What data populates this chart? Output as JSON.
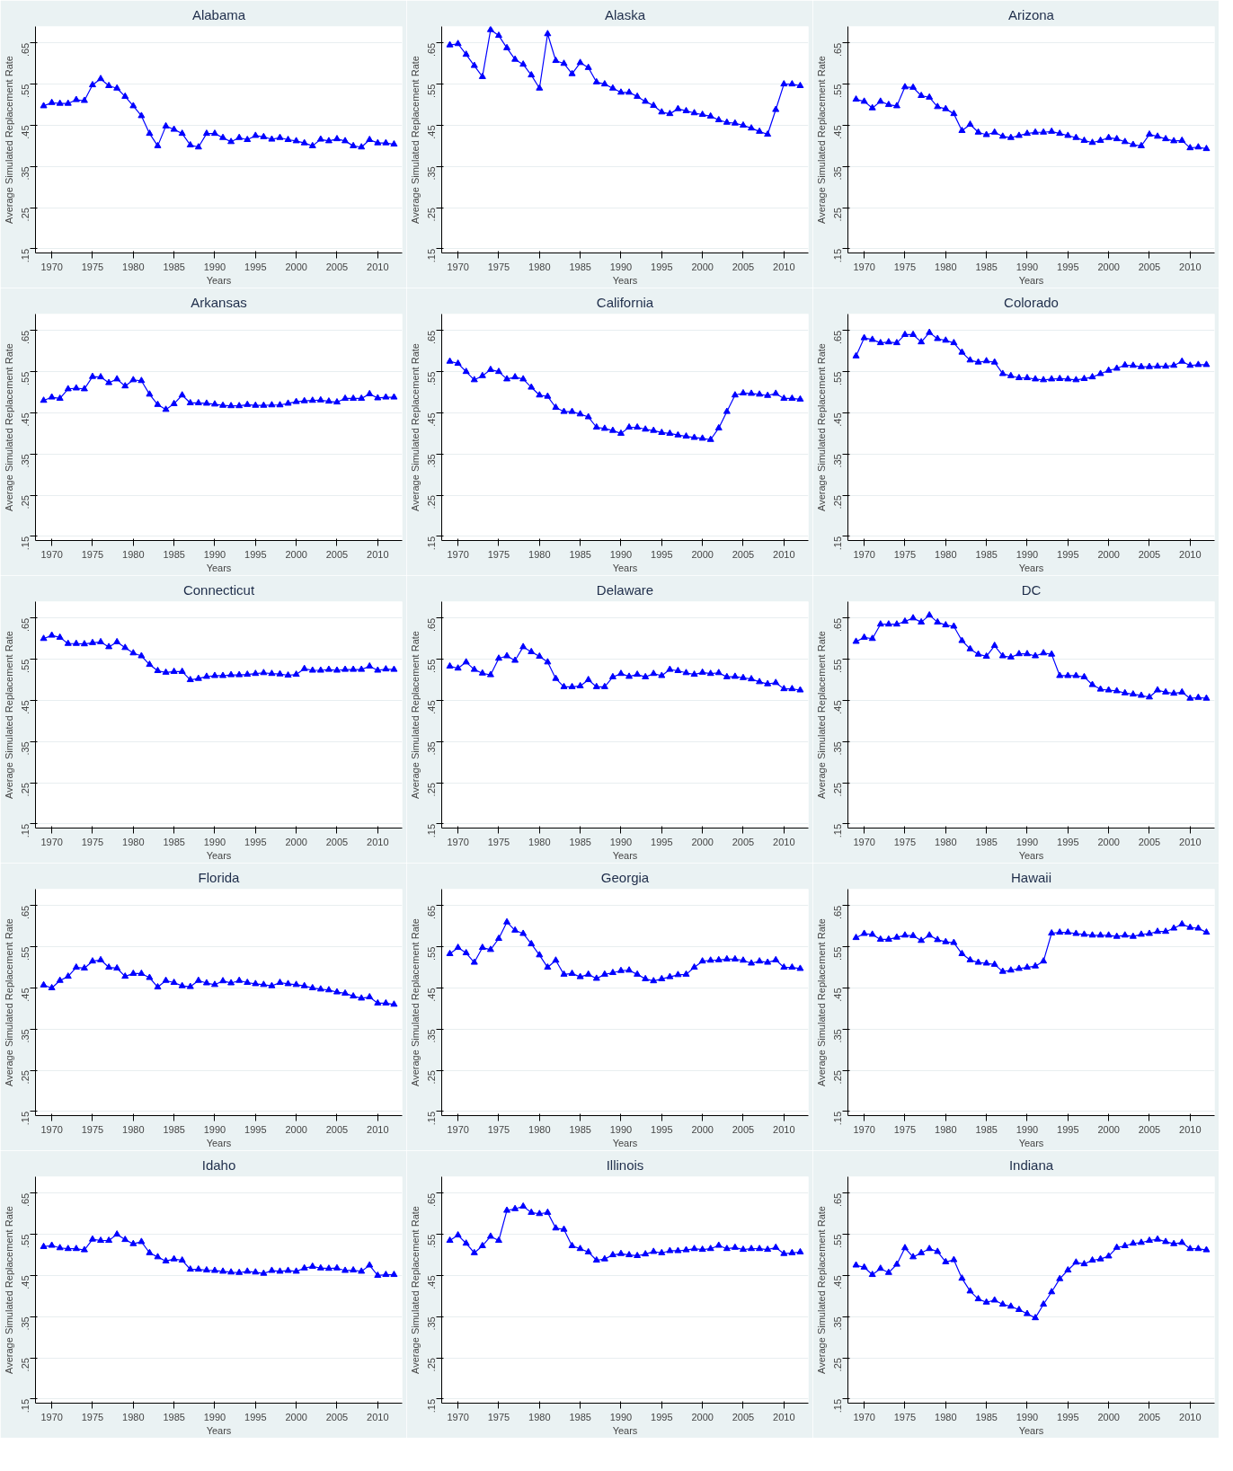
{
  "chart_data": [
    {
      "type": "line",
      "title": "Alabama",
      "xlabel": "Years",
      "ylabel": "Average Simulated Replacement Rate",
      "x": [
        1969,
        1970,
        1971,
        1972,
        1973,
        1974,
        1975,
        1976,
        1977,
        1978,
        1979,
        1980,
        1981,
        1982,
        1983,
        1984,
        1985,
        1986,
        1987,
        1988,
        1989,
        1990,
        1991,
        1992,
        1993,
        1994,
        1995,
        1996,
        1997,
        1998,
        1999,
        2000,
        2001,
        2002,
        2003,
        2004,
        2005,
        2006,
        2007,
        2008,
        2009,
        2010,
        2011,
        2012
      ],
      "series": [
        {
          "color": "#0000ff",
          "values": [
            0.497,
            0.505,
            0.503,
            0.503,
            0.512,
            0.51,
            0.548,
            0.563,
            0.546,
            0.54,
            0.52,
            0.497,
            0.473,
            0.43,
            0.4,
            0.448,
            0.44,
            0.43,
            0.402,
            0.397,
            0.43,
            0.43,
            0.42,
            0.41,
            0.42,
            0.415,
            0.425,
            0.422,
            0.416,
            0.42,
            0.415,
            0.412,
            0.407,
            0.4,
            0.416,
            0.412,
            0.417,
            0.412,
            0.4,
            0.397,
            0.415,
            0.407,
            0.407,
            0.404
          ]
        }
      ],
      "xlim": [
        1968,
        2013
      ],
      "xticks": [
        1970,
        1975,
        1980,
        1985,
        1990,
        1995,
        2000,
        2005,
        2010
      ],
      "ylim": [
        0.14,
        0.69
      ],
      "yticks": [
        {
          "value": 0.15,
          "label": ".15"
        },
        {
          "value": 0.25,
          "label": ".25"
        },
        {
          "value": 0.35,
          "label": ".35"
        },
        {
          "value": 0.45,
          "label": ".45"
        },
        {
          "value": 0.55,
          "label": ".55"
        },
        {
          "value": 0.65,
          "label": ".65"
        }
      ],
      "grid": "y",
      "marker": "triangle"
    },
    {
      "type": "line",
      "title": "Alaska",
      "xlabel": "Years",
      "ylabel": "Average Simulated Replacement Rate",
      "x": [
        1969,
        1970,
        1971,
        1972,
        1973,
        1974,
        1975,
        1976,
        1977,
        1978,
        1979,
        1980,
        1981,
        1982,
        1983,
        1984,
        1985,
        1986,
        1987,
        1988,
        1989,
        1990,
        1991,
        1992,
        1993,
        1994,
        1995,
        1996,
        1997,
        1998,
        1999,
        2000,
        2001,
        2002,
        2003,
        2004,
        2005,
        2006,
        2007,
        2008,
        2009,
        2010,
        2011,
        2012
      ],
      "series": [
        {
          "color": "#0000ff",
          "values": [
            0.645,
            0.648,
            0.622,
            0.595,
            0.568,
            0.682,
            0.668,
            0.638,
            0.61,
            0.598,
            0.572,
            0.54,
            0.672,
            0.607,
            0.6,
            0.575,
            0.602,
            0.59,
            0.555,
            0.55,
            0.54,
            0.53,
            0.53,
            0.52,
            0.508,
            0.498,
            0.482,
            0.478,
            0.49,
            0.485,
            0.48,
            0.476,
            0.472,
            0.463,
            0.457,
            0.455,
            0.45,
            0.443,
            0.435,
            0.428,
            0.488,
            0.55,
            0.55,
            0.546
          ]
        }
      ],
      "xlim": [
        1968,
        2013
      ],
      "xticks": [
        1970,
        1975,
        1980,
        1985,
        1990,
        1995,
        2000,
        2005,
        2010
      ],
      "ylim": [
        0.14,
        0.69
      ],
      "yticks": [
        {
          "value": 0.15,
          "label": ".15"
        },
        {
          "value": 0.25,
          "label": ".25"
        },
        {
          "value": 0.35,
          "label": ".35"
        },
        {
          "value": 0.45,
          "label": ".45"
        },
        {
          "value": 0.55,
          "label": ".55"
        },
        {
          "value": 0.65,
          "label": ".65"
        }
      ],
      "grid": "y",
      "marker": "triangle"
    },
    {
      "type": "line",
      "title": "Arizona",
      "xlabel": "Years",
      "ylabel": "Average Simulated Replacement Rate",
      "x": [
        1969,
        1970,
        1971,
        1972,
        1973,
        1974,
        1975,
        1976,
        1977,
        1978,
        1979,
        1980,
        1981,
        1982,
        1983,
        1984,
        1985,
        1986,
        1987,
        1988,
        1989,
        1990,
        1991,
        1992,
        1993,
        1994,
        1995,
        1996,
        1997,
        1998,
        1999,
        2000,
        2001,
        2002,
        2003,
        2004,
        2005,
        2006,
        2007,
        2008,
        2009,
        2010,
        2011,
        2012
      ],
      "series": [
        {
          "color": "#0000ff",
          "values": [
            0.513,
            0.508,
            0.492,
            0.508,
            0.5,
            0.497,
            0.543,
            0.542,
            0.522,
            0.518,
            0.495,
            0.49,
            0.478,
            0.437,
            0.452,
            0.433,
            0.427,
            0.433,
            0.423,
            0.42,
            0.425,
            0.43,
            0.433,
            0.433,
            0.435,
            0.43,
            0.425,
            0.42,
            0.413,
            0.408,
            0.413,
            0.42,
            0.417,
            0.41,
            0.403,
            0.4,
            0.428,
            0.423,
            0.417,
            0.412,
            0.413,
            0.395,
            0.397,
            0.393
          ]
        }
      ],
      "xlim": [
        1968,
        2013
      ],
      "xticks": [
        1970,
        1975,
        1980,
        1985,
        1990,
        1995,
        2000,
        2005,
        2010
      ],
      "ylim": [
        0.14,
        0.69
      ],
      "yticks": [
        {
          "value": 0.15,
          "label": ".15"
        },
        {
          "value": 0.25,
          "label": ".25"
        },
        {
          "value": 0.35,
          "label": ".35"
        },
        {
          "value": 0.45,
          "label": ".45"
        },
        {
          "value": 0.55,
          "label": ".55"
        },
        {
          "value": 0.65,
          "label": ".65"
        }
      ],
      "grid": "y",
      "marker": "triangle"
    },
    {
      "type": "line",
      "title": "Arkansas",
      "xlabel": "Years",
      "ylabel": "Average Simulated Replacement Rate",
      "x": [
        1969,
        1970,
        1971,
        1972,
        1973,
        1974,
        1975,
        1976,
        1977,
        1978,
        1979,
        1980,
        1981,
        1982,
        1983,
        1984,
        1985,
        1986,
        1987,
        1988,
        1989,
        1990,
        1991,
        1992,
        1993,
        1994,
        1995,
        1996,
        1997,
        1998,
        1999,
        2000,
        2001,
        2002,
        2003,
        2004,
        2005,
        2006,
        2007,
        2008,
        2009,
        2010,
        2011,
        2012
      ],
      "series": [
        {
          "color": "#0000ff",
          "values": [
            0.48,
            0.488,
            0.485,
            0.508,
            0.51,
            0.508,
            0.538,
            0.537,
            0.523,
            0.532,
            0.515,
            0.53,
            0.528,
            0.495,
            0.47,
            0.458,
            0.472,
            0.493,
            0.474,
            0.474,
            0.473,
            0.471,
            0.468,
            0.467,
            0.467,
            0.47,
            0.468,
            0.468,
            0.469,
            0.469,
            0.473,
            0.477,
            0.479,
            0.48,
            0.481,
            0.478,
            0.476,
            0.485,
            0.485,
            0.485,
            0.496,
            0.486,
            0.488,
            0.488
          ]
        }
      ],
      "xlim": [
        1968,
        2013
      ],
      "xticks": [
        1970,
        1975,
        1980,
        1985,
        1990,
        1995,
        2000,
        2005,
        2010
      ],
      "ylim": [
        0.14,
        0.69
      ],
      "yticks": [
        {
          "value": 0.15,
          "label": ".15"
        },
        {
          "value": 0.25,
          "label": ".25"
        },
        {
          "value": 0.35,
          "label": ".35"
        },
        {
          "value": 0.45,
          "label": ".45"
        },
        {
          "value": 0.55,
          "label": ".55"
        },
        {
          "value": 0.65,
          "label": ".65"
        }
      ],
      "grid": "y",
      "marker": "triangle"
    },
    {
      "type": "line",
      "title": "California",
      "xlabel": "Years",
      "ylabel": "Average Simulated Replacement Rate",
      "x": [
        1969,
        1970,
        1971,
        1972,
        1973,
        1974,
        1975,
        1976,
        1977,
        1978,
        1979,
        1980,
        1981,
        1982,
        1983,
        1984,
        1985,
        1986,
        1987,
        1988,
        1989,
        1990,
        1991,
        1992,
        1993,
        1994,
        1995,
        1996,
        1997,
        1998,
        1999,
        2000,
        2001,
        2002,
        2003,
        2004,
        2005,
        2006,
        2007,
        2008,
        2009,
        2010,
        2011,
        2012
      ],
      "series": [
        {
          "color": "#0000ff",
          "values": [
            0.575,
            0.57,
            0.55,
            0.53,
            0.54,
            0.555,
            0.55,
            0.532,
            0.537,
            0.532,
            0.512,
            0.493,
            0.49,
            0.463,
            0.453,
            0.453,
            0.447,
            0.44,
            0.415,
            0.412,
            0.407,
            0.4,
            0.415,
            0.415,
            0.41,
            0.407,
            0.402,
            0.4,
            0.396,
            0.393,
            0.39,
            0.388,
            0.385,
            0.413,
            0.453,
            0.493,
            0.498,
            0.497,
            0.495,
            0.492,
            0.497,
            0.485,
            0.485,
            0.483
          ]
        }
      ],
      "xlim": [
        1968,
        2013
      ],
      "xticks": [
        1970,
        1975,
        1980,
        1985,
        1990,
        1995,
        2000,
        2005,
        2010
      ],
      "ylim": [
        0.14,
        0.69
      ],
      "yticks": [
        {
          "value": 0.15,
          "label": ".15"
        },
        {
          "value": 0.25,
          "label": ".25"
        },
        {
          "value": 0.35,
          "label": ".35"
        },
        {
          "value": 0.45,
          "label": ".45"
        },
        {
          "value": 0.55,
          "label": ".55"
        },
        {
          "value": 0.65,
          "label": ".65"
        }
      ],
      "grid": "y",
      "marker": "triangle"
    },
    {
      "type": "line",
      "title": "Colorado",
      "xlabel": "Years",
      "ylabel": "Average Simulated Replacement Rate",
      "x": [
        1969,
        1970,
        1971,
        1972,
        1973,
        1974,
        1975,
        1976,
        1977,
        1978,
        1979,
        1980,
        1981,
        1982,
        1983,
        1984,
        1985,
        1986,
        1987,
        1988,
        1989,
        1990,
        1991,
        1992,
        1993,
        1994,
        1995,
        1996,
        1997,
        1998,
        1999,
        2000,
        2001,
        2002,
        2003,
        2004,
        2005,
        2006,
        2007,
        2008,
        2009,
        2010,
        2011,
        2012
      ],
      "series": [
        {
          "color": "#0000ff",
          "values": [
            0.588,
            0.632,
            0.628,
            0.62,
            0.622,
            0.62,
            0.64,
            0.64,
            0.622,
            0.645,
            0.63,
            0.626,
            0.62,
            0.597,
            0.578,
            0.573,
            0.576,
            0.573,
            0.545,
            0.54,
            0.535,
            0.535,
            0.532,
            0.53,
            0.532,
            0.533,
            0.532,
            0.53,
            0.533,
            0.537,
            0.545,
            0.553,
            0.558,
            0.566,
            0.565,
            0.562,
            0.562,
            0.563,
            0.563,
            0.565,
            0.575,
            0.565,
            0.567,
            0.567
          ]
        }
      ],
      "xlim": [
        1968,
        2013
      ],
      "xticks": [
        1970,
        1975,
        1980,
        1985,
        1990,
        1995,
        2000,
        2005,
        2010
      ],
      "ylim": [
        0.14,
        0.69
      ],
      "yticks": [
        {
          "value": 0.15,
          "label": ".15"
        },
        {
          "value": 0.25,
          "label": ".25"
        },
        {
          "value": 0.35,
          "label": ".35"
        },
        {
          "value": 0.45,
          "label": ".45"
        },
        {
          "value": 0.55,
          "label": ".55"
        },
        {
          "value": 0.65,
          "label": ".65"
        }
      ],
      "grid": "y",
      "marker": "triangle"
    },
    {
      "type": "line",
      "title": "Connecticut",
      "xlabel": "Years",
      "ylabel": "Average Simulated Replacement Rate",
      "x": [
        1969,
        1970,
        1971,
        1972,
        1973,
        1974,
        1975,
        1976,
        1977,
        1978,
        1979,
        1980,
        1981,
        1982,
        1983,
        1984,
        1985,
        1986,
        1987,
        1988,
        1989,
        1990,
        1991,
        1992,
        1993,
        1994,
        1995,
        1996,
        1997,
        1998,
        1999,
        2000,
        2001,
        2002,
        2003,
        2004,
        2005,
        2006,
        2007,
        2008,
        2009,
        2010,
        2011,
        2012
      ],
      "series": [
        {
          "color": "#0000ff",
          "values": [
            0.6,
            0.608,
            0.603,
            0.588,
            0.588,
            0.587,
            0.59,
            0.592,
            0.58,
            0.592,
            0.578,
            0.565,
            0.558,
            0.537,
            0.522,
            0.518,
            0.52,
            0.52,
            0.5,
            0.503,
            0.508,
            0.51,
            0.51,
            0.512,
            0.512,
            0.513,
            0.515,
            0.517,
            0.515,
            0.514,
            0.511,
            0.513,
            0.527,
            0.523,
            0.523,
            0.525,
            0.523,
            0.525,
            0.525,
            0.525,
            0.533,
            0.523,
            0.526,
            0.525
          ]
        }
      ],
      "xlim": [
        1968,
        2013
      ],
      "xticks": [
        1970,
        1975,
        1980,
        1985,
        1990,
        1995,
        2000,
        2005,
        2010
      ],
      "ylim": [
        0.14,
        0.69
      ],
      "yticks": [
        {
          "value": 0.15,
          "label": ".15"
        },
        {
          "value": 0.25,
          "label": ".25"
        },
        {
          "value": 0.35,
          "label": ".35"
        },
        {
          "value": 0.45,
          "label": ".45"
        },
        {
          "value": 0.55,
          "label": ".55"
        },
        {
          "value": 0.65,
          "label": ".65"
        }
      ],
      "grid": "y",
      "marker": "triangle"
    },
    {
      "type": "line",
      "title": "Delaware",
      "xlabel": "Years",
      "ylabel": "Average Simulated Replacement Rate",
      "x": [
        1969,
        1970,
        1971,
        1972,
        1973,
        1974,
        1975,
        1976,
        1977,
        1978,
        1979,
        1980,
        1981,
        1982,
        1983,
        1984,
        1985,
        1986,
        1987,
        1988,
        1989,
        1990,
        1991,
        1992,
        1993,
        1994,
        1995,
        1996,
        1997,
        1998,
        1999,
        2000,
        2001,
        2002,
        2003,
        2004,
        2005,
        2006,
        2007,
        2008,
        2009,
        2010,
        2011,
        2012
      ],
      "series": [
        {
          "color": "#0000ff",
          "values": [
            0.533,
            0.528,
            0.543,
            0.525,
            0.516,
            0.512,
            0.552,
            0.558,
            0.547,
            0.58,
            0.568,
            0.557,
            0.543,
            0.503,
            0.483,
            0.483,
            0.485,
            0.5,
            0.483,
            0.483,
            0.507,
            0.515,
            0.508,
            0.513,
            0.507,
            0.515,
            0.51,
            0.525,
            0.522,
            0.517,
            0.513,
            0.518,
            0.515,
            0.517,
            0.507,
            0.508,
            0.505,
            0.502,
            0.495,
            0.49,
            0.493,
            0.478,
            0.478,
            0.475
          ]
        }
      ],
      "xlim": [
        1968,
        2013
      ],
      "xticks": [
        1970,
        1975,
        1980,
        1985,
        1990,
        1995,
        2000,
        2005,
        2010
      ],
      "ylim": [
        0.14,
        0.69
      ],
      "yticks": [
        {
          "value": 0.15,
          "label": ".15"
        },
        {
          "value": 0.25,
          "label": ".25"
        },
        {
          "value": 0.35,
          "label": ".35"
        },
        {
          "value": 0.45,
          "label": ".45"
        },
        {
          "value": 0.55,
          "label": ".55"
        },
        {
          "value": 0.65,
          "label": ".65"
        }
      ],
      "grid": "y",
      "marker": "triangle"
    },
    {
      "type": "line",
      "title": "DC",
      "xlabel": "Years",
      "ylabel": "Average Simulated Replacement Rate",
      "x": [
        1969,
        1970,
        1971,
        1972,
        1973,
        1974,
        1975,
        1976,
        1977,
        1978,
        1979,
        1980,
        1981,
        1982,
        1983,
        1984,
        1985,
        1986,
        1987,
        1988,
        1989,
        1990,
        1991,
        1992,
        1993,
        1994,
        1995,
        1996,
        1997,
        1998,
        1999,
        2000,
        2001,
        2002,
        2003,
        2004,
        2005,
        2006,
        2007,
        2008,
        2009,
        2010,
        2011,
        2012
      ],
      "series": [
        {
          "color": "#0000ff",
          "values": [
            0.593,
            0.603,
            0.6,
            0.635,
            0.635,
            0.635,
            0.642,
            0.65,
            0.64,
            0.657,
            0.64,
            0.633,
            0.63,
            0.595,
            0.575,
            0.562,
            0.557,
            0.583,
            0.558,
            0.555,
            0.563,
            0.563,
            0.558,
            0.565,
            0.562,
            0.51,
            0.51,
            0.51,
            0.507,
            0.488,
            0.477,
            0.475,
            0.473,
            0.468,
            0.465,
            0.462,
            0.458,
            0.475,
            0.47,
            0.467,
            0.47,
            0.455,
            0.457,
            0.455
          ]
        }
      ],
      "xlim": [
        1968,
        2013
      ],
      "xticks": [
        1970,
        1975,
        1980,
        1985,
        1990,
        1995,
        2000,
        2005,
        2010
      ],
      "ylim": [
        0.14,
        0.69
      ],
      "yticks": [
        {
          "value": 0.15,
          "label": ".15"
        },
        {
          "value": 0.25,
          "label": ".25"
        },
        {
          "value": 0.35,
          "label": ".35"
        },
        {
          "value": 0.45,
          "label": ".45"
        },
        {
          "value": 0.55,
          "label": ".55"
        },
        {
          "value": 0.65,
          "label": ".65"
        }
      ],
      "grid": "y",
      "marker": "triangle"
    },
    {
      "type": "line",
      "title": "Florida",
      "xlabel": "Years",
      "ylabel": "Average Simulated Replacement Rate",
      "x": [
        1969,
        1970,
        1971,
        1972,
        1973,
        1974,
        1975,
        1976,
        1977,
        1978,
        1979,
        1980,
        1981,
        1982,
        1983,
        1984,
        1985,
        1986,
        1987,
        1988,
        1989,
        1990,
        1991,
        1992,
        1993,
        1994,
        1995,
        1996,
        1997,
        1998,
        1999,
        2000,
        2001,
        2002,
        2003,
        2004,
        2005,
        2006,
        2007,
        2008,
        2009,
        2010,
        2011,
        2012
      ],
      "series": [
        {
          "color": "#0000ff",
          "values": [
            0.457,
            0.45,
            0.468,
            0.478,
            0.5,
            0.498,
            0.515,
            0.518,
            0.5,
            0.498,
            0.478,
            0.485,
            0.485,
            0.475,
            0.452,
            0.468,
            0.463,
            0.455,
            0.453,
            0.468,
            0.462,
            0.458,
            0.467,
            0.462,
            0.468,
            0.463,
            0.46,
            0.458,
            0.455,
            0.463,
            0.46,
            0.458,
            0.455,
            0.45,
            0.447,
            0.445,
            0.44,
            0.437,
            0.43,
            0.425,
            0.428,
            0.413,
            0.413,
            0.41
          ]
        }
      ],
      "xlim": [
        1968,
        2013
      ],
      "xticks": [
        1970,
        1975,
        1980,
        1985,
        1990,
        1995,
        2000,
        2005,
        2010
      ],
      "ylim": [
        0.14,
        0.69
      ],
      "yticks": [
        {
          "value": 0.15,
          "label": ".15"
        },
        {
          "value": 0.25,
          "label": ".25"
        },
        {
          "value": 0.35,
          "label": ".35"
        },
        {
          "value": 0.45,
          "label": ".45"
        },
        {
          "value": 0.55,
          "label": ".55"
        },
        {
          "value": 0.65,
          "label": ".65"
        }
      ],
      "grid": "y",
      "marker": "triangle"
    },
    {
      "type": "line",
      "title": "Georgia",
      "xlabel": "Years",
      "ylabel": "Average Simulated Replacement Rate",
      "x": [
        1969,
        1970,
        1971,
        1972,
        1973,
        1974,
        1975,
        1976,
        1977,
        1978,
        1979,
        1980,
        1981,
        1982,
        1983,
        1984,
        1985,
        1986,
        1987,
        1988,
        1989,
        1990,
        1991,
        1992,
        1993,
        1994,
        1995,
        1996,
        1997,
        1998,
        1999,
        2000,
        2001,
        2002,
        2003,
        2004,
        2005,
        2006,
        2007,
        2008,
        2009,
        2010,
        2011,
        2012
      ],
      "series": [
        {
          "color": "#0000ff",
          "values": [
            0.533,
            0.548,
            0.535,
            0.512,
            0.548,
            0.543,
            0.57,
            0.61,
            0.59,
            0.582,
            0.557,
            0.53,
            0.5,
            0.517,
            0.483,
            0.485,
            0.477,
            0.483,
            0.473,
            0.483,
            0.487,
            0.492,
            0.493,
            0.483,
            0.472,
            0.467,
            0.472,
            0.477,
            0.482,
            0.483,
            0.5,
            0.515,
            0.517,
            0.518,
            0.52,
            0.52,
            0.517,
            0.51,
            0.515,
            0.512,
            0.518,
            0.5,
            0.5,
            0.497
          ]
        }
      ],
      "xlim": [
        1968,
        2013
      ],
      "xticks": [
        1970,
        1975,
        1980,
        1985,
        1990,
        1995,
        2000,
        2005,
        2010
      ],
      "ylim": [
        0.14,
        0.69
      ],
      "yticks": [
        {
          "value": 0.15,
          "label": ".15"
        },
        {
          "value": 0.25,
          "label": ".25"
        },
        {
          "value": 0.35,
          "label": ".35"
        },
        {
          "value": 0.45,
          "label": ".45"
        },
        {
          "value": 0.55,
          "label": ".55"
        },
        {
          "value": 0.65,
          "label": ".65"
        }
      ],
      "grid": "y",
      "marker": "triangle"
    },
    {
      "type": "line",
      "title": "Hawaii",
      "xlabel": "Years",
      "ylabel": "Average Simulated Replacement Rate",
      "x": [
        1969,
        1970,
        1971,
        1972,
        1973,
        1974,
        1975,
        1976,
        1977,
        1978,
        1979,
        1980,
        1981,
        1982,
        1983,
        1984,
        1985,
        1986,
        1987,
        1988,
        1989,
        1990,
        1991,
        1992,
        1993,
        1994,
        1995,
        1996,
        1997,
        1998,
        1999,
        2000,
        2001,
        2002,
        2003,
        2004,
        2005,
        2006,
        2007,
        2008,
        2009,
        2010,
        2011,
        2012
      ],
      "series": [
        {
          "color": "#0000ff",
          "values": [
            0.572,
            0.582,
            0.58,
            0.568,
            0.568,
            0.573,
            0.578,
            0.577,
            0.565,
            0.578,
            0.567,
            0.562,
            0.56,
            0.533,
            0.518,
            0.512,
            0.51,
            0.507,
            0.49,
            0.493,
            0.497,
            0.5,
            0.503,
            0.515,
            0.583,
            0.585,
            0.585,
            0.582,
            0.58,
            0.578,
            0.578,
            0.578,
            0.575,
            0.578,
            0.575,
            0.58,
            0.582,
            0.587,
            0.587,
            0.595,
            0.605,
            0.597,
            0.595,
            0.585
          ]
        }
      ],
      "xlim": [
        1968,
        2013
      ],
      "xticks": [
        1970,
        1975,
        1980,
        1985,
        1990,
        1995,
        2000,
        2005,
        2010
      ],
      "ylim": [
        0.14,
        0.69
      ],
      "yticks": [
        {
          "value": 0.15,
          "label": ".15"
        },
        {
          "value": 0.25,
          "label": ".25"
        },
        {
          "value": 0.35,
          "label": ".35"
        },
        {
          "value": 0.45,
          "label": ".45"
        },
        {
          "value": 0.55,
          "label": ".55"
        },
        {
          "value": 0.65,
          "label": ".65"
        }
      ],
      "grid": "y",
      "marker": "triangle"
    },
    {
      "type": "line",
      "title": "Idaho",
      "xlabel": "Years",
      "ylabel": "Average Simulated Replacement Rate",
      "x": [
        1969,
        1970,
        1971,
        1972,
        1973,
        1974,
        1975,
        1976,
        1977,
        1978,
        1979,
        1980,
        1981,
        1982,
        1983,
        1984,
        1985,
        1986,
        1987,
        1988,
        1989,
        1990,
        1991,
        1992,
        1993,
        1994,
        1995,
        1996,
        1997,
        1998,
        1999,
        2000,
        2001,
        2002,
        2003,
        2004,
        2005,
        2006,
        2007,
        2008,
        2009,
        2010,
        2011,
        2012
      ],
      "series": [
        {
          "color": "#0000ff",
          "values": [
            0.52,
            0.523,
            0.517,
            0.515,
            0.515,
            0.512,
            0.538,
            0.535,
            0.535,
            0.55,
            0.537,
            0.527,
            0.532,
            0.505,
            0.495,
            0.485,
            0.49,
            0.487,
            0.465,
            0.465,
            0.463,
            0.462,
            0.46,
            0.458,
            0.457,
            0.46,
            0.458,
            0.455,
            0.462,
            0.46,
            0.462,
            0.46,
            0.468,
            0.472,
            0.468,
            0.467,
            0.468,
            0.462,
            0.463,
            0.46,
            0.475,
            0.45,
            0.452,
            0.452
          ]
        }
      ],
      "xlim": [
        1968,
        2013
      ],
      "xticks": [
        1970,
        1975,
        1980,
        1985,
        1990,
        1995,
        2000,
        2005,
        2010
      ],
      "ylim": [
        0.14,
        0.69
      ],
      "yticks": [
        {
          "value": 0.15,
          "label": ".15"
        },
        {
          "value": 0.25,
          "label": ".25"
        },
        {
          "value": 0.35,
          "label": ".35"
        },
        {
          "value": 0.45,
          "label": ".45"
        },
        {
          "value": 0.55,
          "label": ".55"
        },
        {
          "value": 0.65,
          "label": ".65"
        }
      ],
      "grid": "y",
      "marker": "triangle"
    },
    {
      "type": "line",
      "title": "Illinois",
      "xlabel": "Years",
      "ylabel": "Average Simulated Replacement Rate",
      "x": [
        1969,
        1970,
        1971,
        1972,
        1973,
        1974,
        1975,
        1976,
        1977,
        1978,
        1979,
        1980,
        1981,
        1982,
        1983,
        1984,
        1985,
        1986,
        1987,
        1988,
        1989,
        1990,
        1991,
        1992,
        1993,
        1994,
        1995,
        1996,
        1997,
        1998,
        1999,
        2000,
        2001,
        2002,
        2003,
        2004,
        2005,
        2006,
        2007,
        2008,
        2009,
        2010,
        2011,
        2012
      ],
      "series": [
        {
          "color": "#0000ff",
          "values": [
            0.535,
            0.548,
            0.528,
            0.505,
            0.522,
            0.545,
            0.535,
            0.608,
            0.612,
            0.618,
            0.603,
            0.6,
            0.603,
            0.565,
            0.562,
            0.522,
            0.515,
            0.507,
            0.487,
            0.49,
            0.5,
            0.503,
            0.5,
            0.498,
            0.502,
            0.508,
            0.505,
            0.51,
            0.51,
            0.512,
            0.515,
            0.513,
            0.515,
            0.523,
            0.515,
            0.518,
            0.513,
            0.515,
            0.515,
            0.513,
            0.518,
            0.503,
            0.505,
            0.507
          ]
        }
      ],
      "xlim": [
        1968,
        2013
      ],
      "xticks": [
        1970,
        1975,
        1980,
        1985,
        1990,
        1995,
        2000,
        2005,
        2010
      ],
      "ylim": [
        0.14,
        0.69
      ],
      "yticks": [
        {
          "value": 0.15,
          "label": ".15"
        },
        {
          "value": 0.25,
          "label": ".25"
        },
        {
          "value": 0.35,
          "label": ".35"
        },
        {
          "value": 0.45,
          "label": ".45"
        },
        {
          "value": 0.55,
          "label": ".55"
        },
        {
          "value": 0.65,
          "label": ".65"
        }
      ],
      "grid": "y",
      "marker": "triangle"
    },
    {
      "type": "line",
      "title": "Indiana",
      "xlabel": "Years",
      "ylabel": "Average Simulated Replacement Rate",
      "x": [
        1969,
        1970,
        1971,
        1972,
        1973,
        1974,
        1975,
        1976,
        1977,
        1978,
        1979,
        1980,
        1981,
        1982,
        1983,
        1984,
        1985,
        1986,
        1987,
        1988,
        1989,
        1990,
        1991,
        1992,
        1993,
        1994,
        1995,
        1996,
        1997,
        1998,
        1999,
        2000,
        2001,
        2002,
        2003,
        2004,
        2005,
        2006,
        2007,
        2008,
        2009,
        2010,
        2011,
        2012
      ],
      "series": [
        {
          "color": "#0000ff",
          "values": [
            0.475,
            0.47,
            0.452,
            0.467,
            0.457,
            0.477,
            0.517,
            0.495,
            0.505,
            0.515,
            0.508,
            0.483,
            0.488,
            0.443,
            0.412,
            0.393,
            0.385,
            0.39,
            0.38,
            0.375,
            0.367,
            0.357,
            0.347,
            0.38,
            0.41,
            0.442,
            0.463,
            0.482,
            0.478,
            0.487,
            0.49,
            0.497,
            0.518,
            0.522,
            0.528,
            0.53,
            0.535,
            0.538,
            0.532,
            0.527,
            0.53,
            0.515,
            0.515,
            0.512
          ]
        }
      ],
      "xlim": [
        1968,
        2013
      ],
      "xticks": [
        1970,
        1975,
        1980,
        1985,
        1990,
        1995,
        2000,
        2005,
        2010
      ],
      "ylim": [
        0.14,
        0.69
      ],
      "yticks": [
        {
          "value": 0.15,
          "label": ".15"
        },
        {
          "value": 0.25,
          "label": ".25"
        },
        {
          "value": 0.35,
          "label": ".35"
        },
        {
          "value": 0.45,
          "label": ".45"
        },
        {
          "value": 0.55,
          "label": ".55"
        },
        {
          "value": 0.65,
          "label": ".65"
        }
      ],
      "grid": "y",
      "marker": "triangle"
    }
  ]
}
